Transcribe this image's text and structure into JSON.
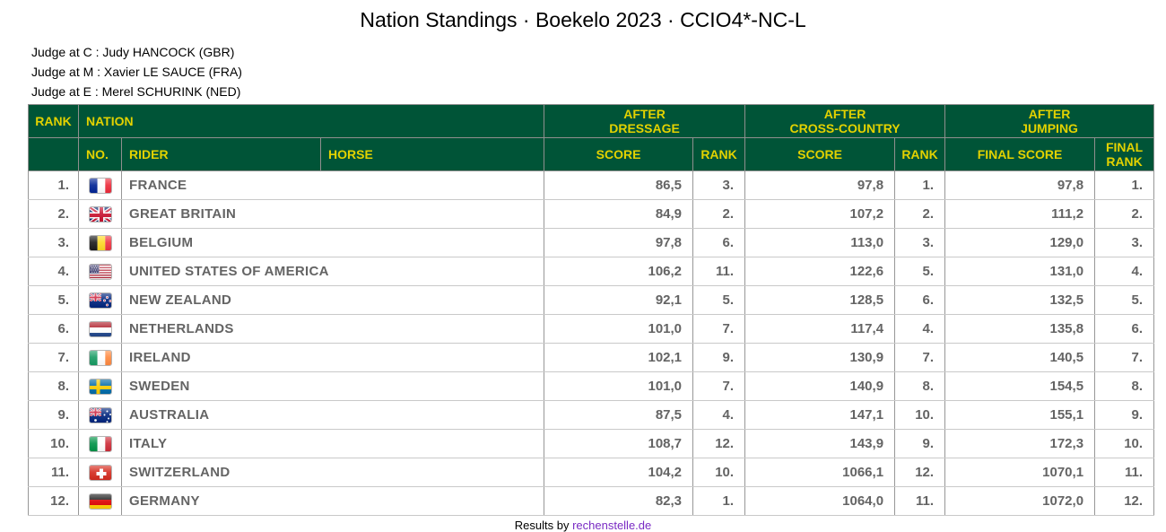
{
  "title": "Nation Standings · Boekelo 2023 · CCIO4*-NC-L",
  "judges": [
    "Judge at C : Judy HANCOCK (GBR)",
    "Judge at M : Xavier LE SAUCE (FRA)",
    "Judge at E : Merel SCHURINK (NED)"
  ],
  "table": {
    "columns": {
      "rank": "RANK",
      "nation": "NATION",
      "no": "NO.",
      "rider": "RIDER",
      "horse": "HORSE",
      "score": "SCORE",
      "rank_sub": "RANK",
      "final_score": "FINAL SCORE",
      "final_rank": [
        "FINAL",
        "RANK"
      ]
    },
    "groups": {
      "dressage": [
        "AFTER",
        "DRESSAGE"
      ],
      "cross_country": [
        "AFTER",
        "CROSS-COUNTRY"
      ],
      "jumping": [
        "AFTER",
        "JUMPING"
      ]
    },
    "rows": [
      {
        "rank": "1.",
        "flag": "fr",
        "nation": "FRANCE",
        "dr_score": "86,5",
        "dr_rank": "3.",
        "xc_score": "97,8",
        "xc_rank": "1.",
        "final_score": "97,8",
        "final_rank": "1."
      },
      {
        "rank": "2.",
        "flag": "gb",
        "nation": "GREAT BRITAIN",
        "dr_score": "84,9",
        "dr_rank": "2.",
        "xc_score": "107,2",
        "xc_rank": "2.",
        "final_score": "111,2",
        "final_rank": "2."
      },
      {
        "rank": "3.",
        "flag": "be",
        "nation": "BELGIUM",
        "dr_score": "97,8",
        "dr_rank": "6.",
        "xc_score": "113,0",
        "xc_rank": "3.",
        "final_score": "129,0",
        "final_rank": "3."
      },
      {
        "rank": "4.",
        "flag": "us",
        "nation": "UNITED STATES OF AMERICA",
        "dr_score": "106,2",
        "dr_rank": "11.",
        "xc_score": "122,6",
        "xc_rank": "5.",
        "final_score": "131,0",
        "final_rank": "4."
      },
      {
        "rank": "5.",
        "flag": "nz",
        "nation": "NEW ZEALAND",
        "dr_score": "92,1",
        "dr_rank": "5.",
        "xc_score": "128,5",
        "xc_rank": "6.",
        "final_score": "132,5",
        "final_rank": "5."
      },
      {
        "rank": "6.",
        "flag": "nl",
        "nation": "NETHERLANDS",
        "dr_score": "101,0",
        "dr_rank": "7.",
        "xc_score": "117,4",
        "xc_rank": "4.",
        "final_score": "135,8",
        "final_rank": "6."
      },
      {
        "rank": "7.",
        "flag": "ie",
        "nation": "IRELAND",
        "dr_score": "102,1",
        "dr_rank": "9.",
        "xc_score": "130,9",
        "xc_rank": "7.",
        "final_score": "140,5",
        "final_rank": "7."
      },
      {
        "rank": "8.",
        "flag": "se",
        "nation": "SWEDEN",
        "dr_score": "101,0",
        "dr_rank": "7.",
        "xc_score": "140,9",
        "xc_rank": "8.",
        "final_score": "154,5",
        "final_rank": "8."
      },
      {
        "rank": "9.",
        "flag": "au",
        "nation": "AUSTRALIA",
        "dr_score": "87,5",
        "dr_rank": "4.",
        "xc_score": "147,1",
        "xc_rank": "10.",
        "final_score": "155,1",
        "final_rank": "9."
      },
      {
        "rank": "10.",
        "flag": "it",
        "nation": "ITALY",
        "dr_score": "108,7",
        "dr_rank": "12.",
        "xc_score": "143,9",
        "xc_rank": "9.",
        "final_score": "172,3",
        "final_rank": "10."
      },
      {
        "rank": "11.",
        "flag": "ch",
        "nation": "SWITZERLAND",
        "dr_score": "104,2",
        "dr_rank": "10.",
        "xc_score": "1066,1",
        "xc_rank": "12.",
        "final_score": "1070,1",
        "final_rank": "11."
      },
      {
        "rank": "12.",
        "flag": "de",
        "nation": "GERMANY",
        "dr_score": "82,3",
        "dr_rank": "1.",
        "xc_score": "1064,0",
        "xc_rank": "11.",
        "final_score": "1072,0",
        "final_rank": "12."
      }
    ]
  },
  "footer": {
    "text": "Results by",
    "link_label": "rechenstelle.de"
  },
  "colors": {
    "header_bg": "#005437",
    "header_text": "#e3d200",
    "link": "#7a2bc4",
    "data_text": "#646464"
  }
}
